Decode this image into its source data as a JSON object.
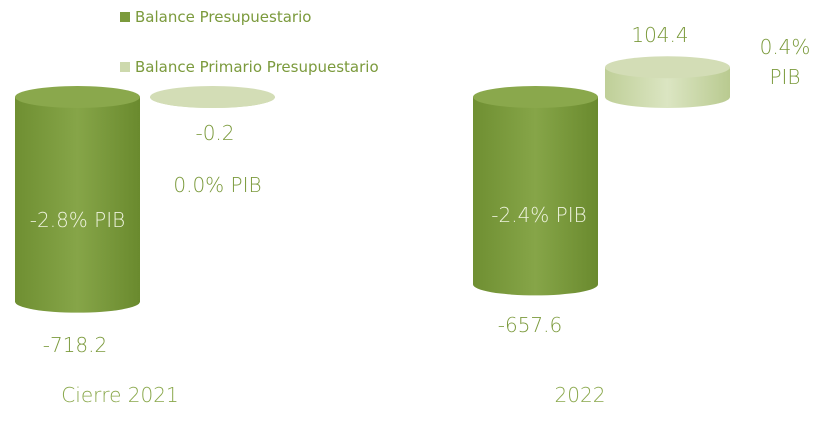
{
  "chart_data": {
    "type": "cylinder-bar",
    "categories": [
      "Cierre 2021",
      "2022"
    ],
    "series": [
      {
        "name": "Balance Presupuestario",
        "color": "#7b9a3c",
        "values": [
          -718.2,
          -657.6
        ],
        "pib_labels": [
          "-2.8% PIB",
          "-2.4% PIB"
        ]
      },
      {
        "name": "Balance Primario Presupuestario",
        "color": "#cdd9ad",
        "values": [
          -0.2,
          104.4
        ],
        "pib_labels": [
          "0.0% PIB",
          "0.4% PIB"
        ]
      }
    ]
  }
}
